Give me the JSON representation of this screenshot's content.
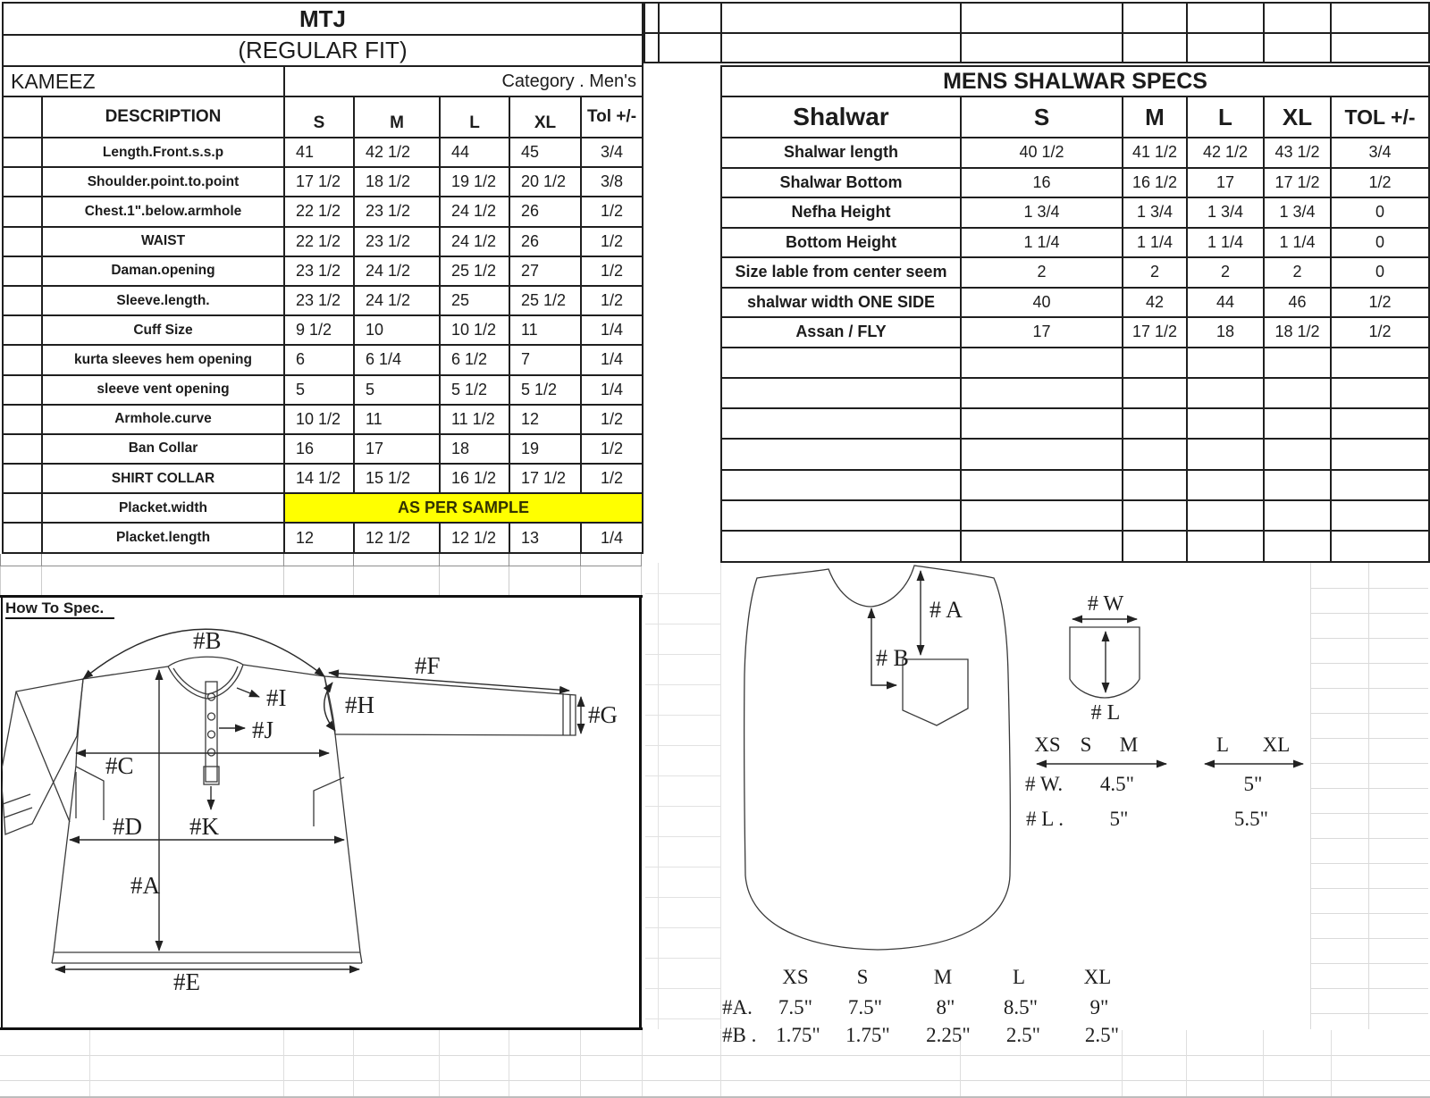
{
  "colors": {
    "highlight": "#ffff00",
    "border": "#1f1f1f",
    "grid_faint": "#d9d9d9"
  },
  "left_table": {
    "title": "MTJ",
    "subtitle": "(REGULAR FIT)",
    "product": "KAMEEZ",
    "category": "Category .  Men's",
    "headers": [
      "DESCRIPTION",
      "S",
      "M",
      "L",
      "XL",
      "Tol +/-"
    ],
    "rows": [
      {
        "label": "Length.Front.s.s.p",
        "values": [
          "41",
          "42 1/2",
          "44",
          "45",
          "3/4"
        ]
      },
      {
        "label": "Shoulder.point.to.point",
        "values": [
          "17 1/2",
          "18 1/2",
          "19 1/2",
          "20 1/2",
          "3/8"
        ]
      },
      {
        "label": "Chest.1\".below.armhole",
        "values": [
          "22 1/2",
          "23 1/2",
          "24 1/2",
          "26",
          "1/2"
        ]
      },
      {
        "label": "WAIST",
        "values": [
          "22 1/2",
          "23 1/2",
          "24 1/2",
          "26",
          "1/2"
        ]
      },
      {
        "label": "Daman.opening",
        "values": [
          "23 1/2",
          "24 1/2",
          "25 1/2",
          "27",
          "1/2"
        ]
      },
      {
        "label": "Sleeve.length.",
        "values": [
          "23 1/2",
          "24 1/2",
          "25",
          "25 1/2",
          "1/2"
        ]
      },
      {
        "label": "Cuff Size",
        "values": [
          "9 1/2",
          "10",
          "10 1/2",
          "11",
          "1/4"
        ]
      },
      {
        "label": "kurta sleeves hem opening",
        "values": [
          "6",
          "6 1/4",
          "6 1/2",
          "7",
          "1/4"
        ]
      },
      {
        "label": "sleeve vent opening",
        "values": [
          "5",
          "5",
          "5 1/2",
          "5 1/2",
          "1/4"
        ]
      },
      {
        "label": "Armhole.curve",
        "values": [
          "10 1/2",
          "11",
          "11 1/2",
          "12",
          "1/2"
        ]
      },
      {
        "label": "Ban Collar",
        "values": [
          "16",
          "17",
          "18",
          "19",
          "1/2"
        ]
      },
      {
        "label": "SHIRT COLLAR",
        "values": [
          "14 1/2",
          "15 1/2",
          "16 1/2",
          "17 1/2",
          "1/2"
        ]
      },
      {
        "label": "Placket.width",
        "highlight": true,
        "values": [
          "AS PER SAMPLE"
        ]
      },
      {
        "label": "Placket.length",
        "values": [
          "12",
          "12 1/2",
          "12 1/2",
          "13",
          "1/4"
        ]
      }
    ]
  },
  "right_table": {
    "title": "MENS SHALWAR SPECS",
    "headers": [
      "Shalwar",
      "S",
      "M",
      "L",
      "XL",
      "TOL +/-"
    ],
    "rows": [
      {
        "label": "Shalwar length",
        "values": [
          "40 1/2",
          "41 1/2",
          "42 1/2",
          "43 1/2",
          "3/4"
        ]
      },
      {
        "label": "Shalwar Bottom",
        "values": [
          "16",
          "16 1/2",
          "17",
          "17 1/2",
          "1/2"
        ]
      },
      {
        "label": "Nefha Height",
        "values": [
          "1 3/4",
          "1 3/4",
          "1 3/4",
          "1 3/4",
          "0"
        ]
      },
      {
        "label": "Bottom Height",
        "values": [
          "1 1/4",
          "1 1/4",
          "1 1/4",
          "1 1/4",
          "0"
        ]
      },
      {
        "label": "Size lable from center seem",
        "values": [
          "2",
          "2",
          "2",
          "2",
          "0"
        ]
      },
      {
        "label": "shalwar width ONE SIDE",
        "values": [
          "40",
          "42",
          "44",
          "46",
          "1/2"
        ]
      },
      {
        "label": "Assan / FLY",
        "values": [
          "17",
          "17 1/2",
          "18",
          "18 1/2",
          "1/2"
        ]
      }
    ],
    "empty_row_count": 7
  },
  "how_to_spec": {
    "heading": "How To Spec."
  },
  "kameez_diagram": {
    "labels": {
      "a": "#A",
      "b": "#B",
      "c": "#C",
      "d": "#D",
      "e": "#E",
      "f": "#F",
      "g": "#G",
      "h": "#H",
      "i": "#I",
      "j": "#J",
      "k": "#K"
    }
  },
  "vest_diagram": {
    "labels": {
      "a": "# A",
      "b": "# B",
      "w": "# W",
      "l": "# L"
    },
    "pocket_chart": {
      "sizes_small": [
        "XS",
        "S",
        "M"
      ],
      "sizes_large": [
        "L",
        "XL"
      ],
      "rows": [
        {
          "label": "# W.",
          "small": "4.5\"",
          "large": "5\""
        },
        {
          "label": "# L .",
          "small": "5\"",
          "large": "5.5\""
        }
      ]
    },
    "body_chart": {
      "sizes": [
        "XS",
        "S",
        "M",
        "L",
        "XL"
      ],
      "rows": [
        {
          "label": "#A.",
          "values": [
            "7.5\"",
            "7.5\"",
            "8\"",
            "8.5\"",
            "9\""
          ]
        },
        {
          "label": "#B .",
          "values": [
            "1.75\"",
            "1.75\"",
            "2.25\"",
            "2.5\"",
            "2.5\""
          ]
        }
      ]
    }
  }
}
